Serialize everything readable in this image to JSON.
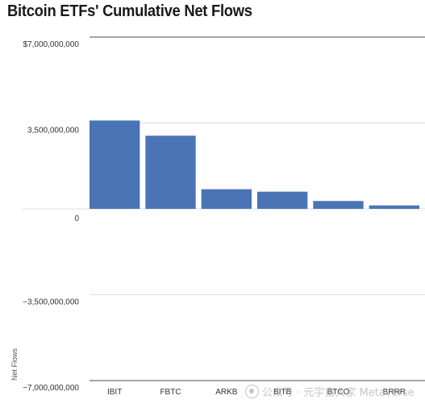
{
  "chart_data": {
    "type": "bar",
    "title": "Bitcoin ETFs' Cumulative Net Flows",
    "ylabel": "Net Flows",
    "xlabel": "",
    "categories": [
      "IBIT",
      "FBTC",
      "ARKB",
      "BITB",
      "BTCO",
      "BRRR"
    ],
    "values": [
      3600000000,
      2980000000,
      800000000,
      700000000,
      320000000,
      140000000
    ],
    "ylim": [
      -7000000000,
      7000000000
    ],
    "yticks": [
      {
        "value": 7000000000,
        "label": "$7,000,000,000"
      },
      {
        "value": 3500000000,
        "label": "3,500,000,000"
      },
      {
        "value": 0,
        "label": "0"
      },
      {
        "value": -3500000000,
        "label": "−3,500,000,000"
      },
      {
        "value": -7000000000,
        "label": "−7,000,000,000"
      }
    ],
    "bar_color": "#4a74b5",
    "grid": true
  },
  "watermark": {
    "text": "公众号 · 元宇宙大家 Metaverse",
    "icon": "wechat-icon"
  }
}
